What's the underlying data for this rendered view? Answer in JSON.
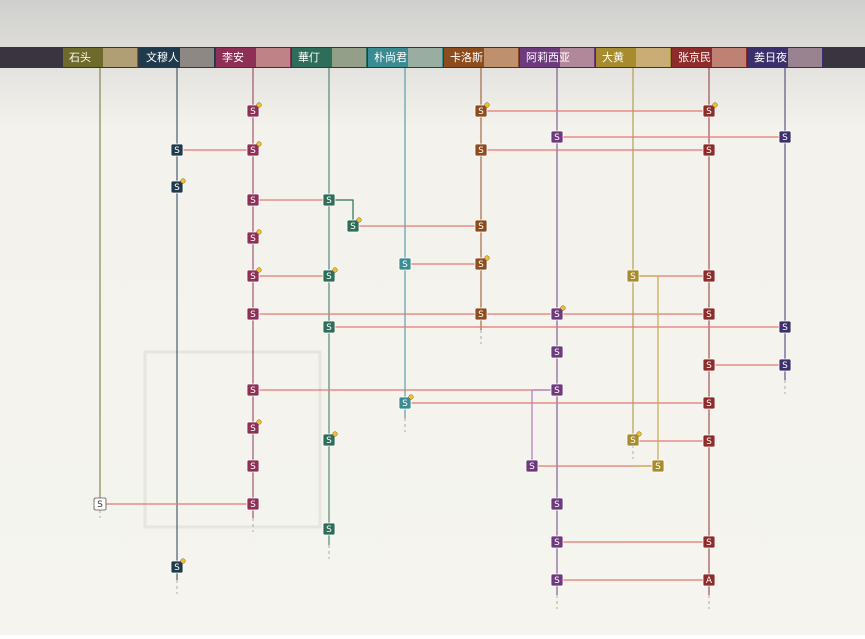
{
  "columns": [
    {
      "name": "石头",
      "color": "#6e6a2c"
    },
    {
      "name": "文穆人",
      "color": "#1f3a4c"
    },
    {
      "name": "李安",
      "color": "#8e3056"
    },
    {
      "name": "華仃",
      "color": "#2e6d5a"
    },
    {
      "name": "朴尚君",
      "color": "#3a8c92"
    },
    {
      "name": "卡洛斯",
      "color": "#8c4c1e"
    },
    {
      "name": "阿莉西亚",
      "color": "#6e3a7e"
    },
    {
      "name": "大黄",
      "color": "#a68c2e"
    },
    {
      "name": "张京民",
      "color": "#8e2c2c"
    },
    {
      "name": "姜日夜",
      "color": "#3c306c"
    }
  ],
  "nodes": [
    {
      "label": "S"
    },
    {
      "label": "S"
    },
    {
      "label": "S"
    },
    {
      "label": "S"
    },
    {
      "label": "S"
    },
    {
      "label": "S"
    },
    {
      "label": "S"
    },
    {
      "label": "S"
    },
    {
      "label": "S"
    },
    {
      "label": "S"
    },
    {
      "label": "S"
    },
    {
      "label": "S"
    },
    {
      "label": "S"
    },
    {
      "label": "S"
    },
    {
      "label": "S"
    },
    {
      "label": "S"
    },
    {
      "label": "S"
    },
    {
      "label": "S"
    },
    {
      "label": "S"
    },
    {
      "label": "S"
    },
    {
      "label": "S"
    },
    {
      "label": "S"
    },
    {
      "label": "S"
    },
    {
      "label": "S"
    },
    {
      "label": "S"
    },
    {
      "label": "S"
    },
    {
      "label": "S"
    },
    {
      "label": "S"
    },
    {
      "label": "S"
    },
    {
      "label": "S"
    },
    {
      "label": "S"
    },
    {
      "label": "S"
    },
    {
      "label": "S"
    },
    {
      "label": "S"
    },
    {
      "label": "S"
    },
    {
      "label": "S"
    },
    {
      "label": "S"
    },
    {
      "label": "S"
    },
    {
      "label": "S"
    },
    {
      "label": "S"
    },
    {
      "label": "S"
    },
    {
      "label": "S"
    },
    {
      "label": "S"
    },
    {
      "label": "S"
    },
    {
      "label": "S"
    },
    {
      "label": "A"
    },
    {
      "label": "S"
    },
    {
      "label": "S"
    },
    {
      "label": "S"
    },
    {
      "label": "S"
    }
  ]
}
